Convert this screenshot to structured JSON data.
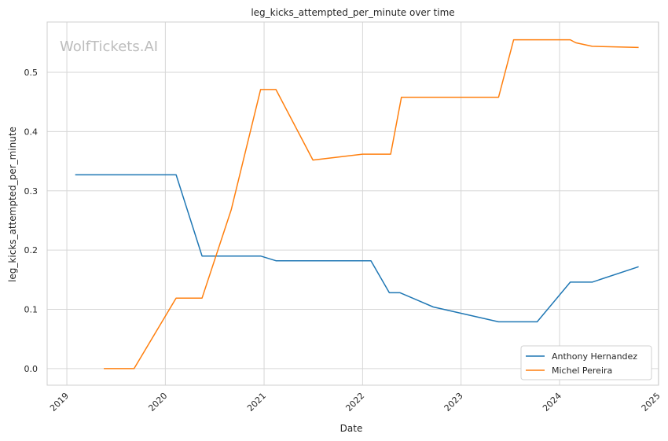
{
  "chart_data": {
    "type": "line",
    "title": "leg_kicks_attempted_per_minute over time",
    "xlabel": "Date",
    "ylabel": "leg_kicks_attempted_per_minute",
    "watermark": "WolfTickets.AI",
    "xlim": [
      "2018-10-20",
      "2025-01-02"
    ],
    "ylim": [
      -0.028,
      0.585
    ],
    "x_ticks": [
      "2019-01-01",
      "2020-01-01",
      "2021-01-01",
      "2022-01-01",
      "2023-01-01",
      "2024-01-01",
      "2025-01-01"
    ],
    "x_tick_labels": [
      "2019",
      "2020",
      "2021",
      "2022",
      "2023",
      "2024",
      "2025"
    ],
    "y_ticks": [
      0.0,
      0.1,
      0.2,
      0.3,
      0.4,
      0.5
    ],
    "y_tick_labels": [
      "0.0",
      "0.1",
      "0.2",
      "0.3",
      "0.4",
      "0.5"
    ],
    "grid": true,
    "legend_position": "lower-right",
    "series": [
      {
        "name": "Anthony Hernandez",
        "color": "#1f77b4",
        "x": [
          "2019-02-01",
          "2020-02-10",
          "2020-05-16",
          "2020-12-19",
          "2021-02-14",
          "2022-02-01",
          "2022-04-10",
          "2022-05-20",
          "2022-09-20",
          "2023-05-20",
          "2023-10-10",
          "2024-02-10",
          "2024-05-01",
          "2024-10-20"
        ],
        "y": [
          0.327,
          0.327,
          0.19,
          0.19,
          0.182,
          0.182,
          0.128,
          0.128,
          0.104,
          0.079,
          0.079,
          0.146,
          0.146,
          0.172
        ]
      },
      {
        "name": "Michel Pereira",
        "color": "#ff7f0e",
        "x": [
          "2019-05-18",
          "2019-09-07",
          "2020-02-10",
          "2020-05-16",
          "2020-09-01",
          "2020-12-19",
          "2021-02-14",
          "2021-07-01",
          "2022-01-01",
          "2022-04-15",
          "2022-05-25",
          "2023-05-20",
          "2023-07-15",
          "2024-02-10",
          "2024-03-01",
          "2024-05-01",
          "2024-10-20"
        ],
        "y": [
          0.0,
          0.0,
          0.119,
          0.119,
          0.268,
          0.471,
          0.471,
          0.352,
          0.362,
          0.362,
          0.458,
          0.458,
          0.555,
          0.555,
          0.55,
          0.544,
          0.542
        ]
      }
    ]
  }
}
